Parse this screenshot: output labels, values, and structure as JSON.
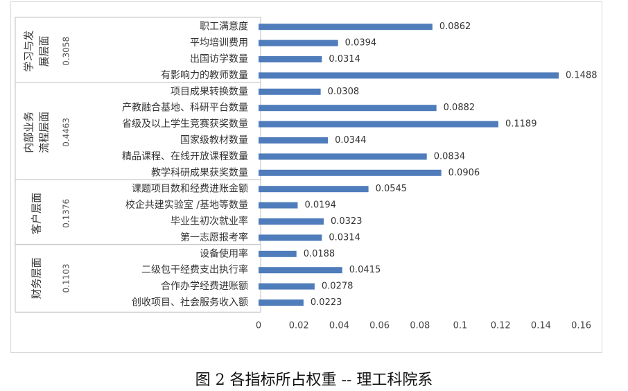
{
  "caption": "图 2  各指标所占权重 -- 理工科院系",
  "chart_data": {
    "type": "bar",
    "orientation": "horizontal",
    "title": "",
    "xlabel": "",
    "ylabel": "",
    "xlim": [
      0,
      0.16
    ],
    "xticks": [
      "0",
      "0.02",
      "0.04",
      "0.06",
      "0.08",
      "0.1",
      "0.12",
      "0.14",
      "0.16"
    ],
    "bar_color": "#4f7cba",
    "grid": false,
    "legend": "none",
    "groups": [
      {
        "label": "学习与发展层面",
        "weight": "0.3058",
        "items": [
          {
            "label": "职工满意度",
            "value": 0.0862,
            "value_label": "0.0862"
          },
          {
            "label": "平均培训费用",
            "value": 0.0394,
            "value_label": "0.0394"
          },
          {
            "label": "出国访学数量",
            "value": 0.0314,
            "value_label": "0.0314"
          },
          {
            "label": "有影响力的教师数量",
            "value": 0.1488,
            "value_label": "0.1488"
          }
        ]
      },
      {
        "label": "内部业务流程层面",
        "weight": "0.4463",
        "items": [
          {
            "label": "项目成果转换数量",
            "value": 0.0308,
            "value_label": "0.0308"
          },
          {
            "label": "产教融合基地、科研平台数量",
            "value": 0.0882,
            "value_label": "0.0882"
          },
          {
            "label": "省级及以上学生竞赛获奖数量",
            "value": 0.1189,
            "value_label": "0.1189"
          },
          {
            "label": "国家级教材数量",
            "value": 0.0344,
            "value_label": "0.0344"
          },
          {
            "label": "精品课程、在线开放课程数量",
            "value": 0.0834,
            "value_label": "0.0834"
          },
          {
            "label": "教学科研成果获奖数量",
            "value": 0.0906,
            "value_label": "0.0906"
          }
        ]
      },
      {
        "label": "客户层面",
        "weight": "0.1376",
        "items": [
          {
            "label": "课题项目数和经费进账金额",
            "value": 0.0545,
            "value_label": "0.0545"
          },
          {
            "label": "校企共建实验室 /基地等数量",
            "value": 0.0194,
            "value_label": "0.0194"
          },
          {
            "label": "毕业生初次就业率",
            "value": 0.0323,
            "value_label": "0.0323"
          },
          {
            "label": "第一志愿报考率",
            "value": 0.0314,
            "value_label": "0.0314"
          }
        ]
      },
      {
        "label": "财务层面",
        "weight": "0.1103",
        "items": [
          {
            "label": "设备使用率",
            "value": 0.0188,
            "value_label": "0.0188"
          },
          {
            "label": "二级包干经费支出执行率",
            "value": 0.0415,
            "value_label": "0.0415"
          },
          {
            "label": "合作办学经费进账额",
            "value": 0.0278,
            "value_label": "0.0278"
          },
          {
            "label": "创收项目、社会服务收入额",
            "value": 0.0223,
            "value_label": "0.0223"
          }
        ]
      }
    ]
  }
}
